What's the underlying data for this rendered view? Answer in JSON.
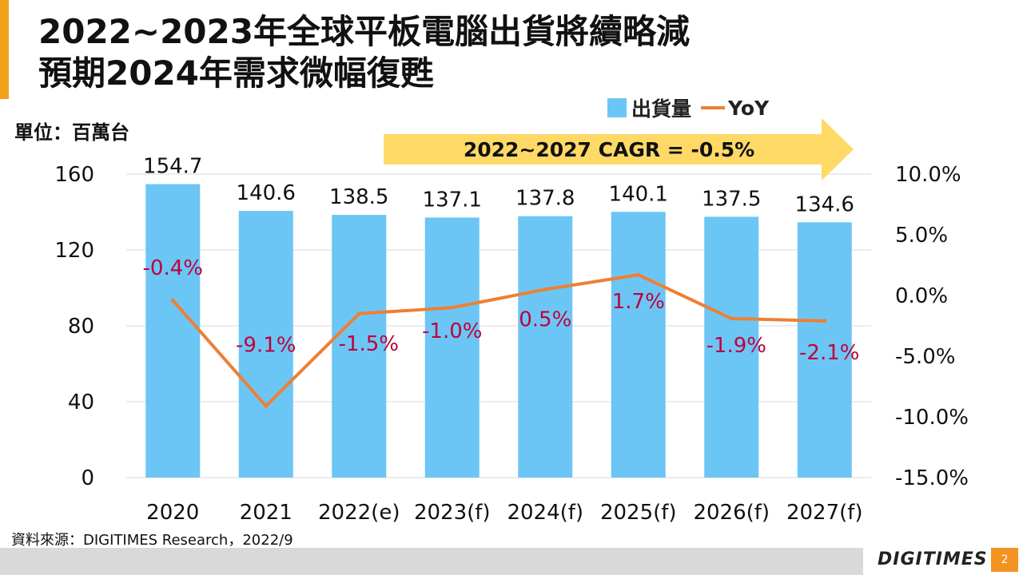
{
  "header": {
    "title_line1": "2022~2023年全球平板電腦出貨將續略減",
    "title_line2": "預期2024年需求微幅復甦"
  },
  "unit_label": "單位：百萬台",
  "source_note": "資料來源：DIGITIMES Research，2022/9",
  "brand": {
    "logo_text": "DIGITIMES",
    "page_number": "2"
  },
  "colors": {
    "bar": "#6cc6f5",
    "line": "#ed8034",
    "yoy_label": "#c0003a",
    "arrow": "#ffd966",
    "accent": "#f4a21d",
    "footer": "#d9d9d9",
    "page_badge": "#f39322",
    "grid": "#d9d9d9"
  },
  "chart_data": {
    "type": "bar",
    "categories": [
      "2020",
      "2021",
      "2022(e)",
      "2023(f)",
      "2024(f)",
      "2025(f)",
      "2026(f)",
      "2027(f)"
    ],
    "series": [
      {
        "name": "出貨量",
        "type": "bar",
        "axis": "left",
        "values": [
          154.7,
          140.6,
          138.5,
          137.1,
          137.8,
          140.1,
          137.5,
          134.6
        ],
        "labels": [
          "154.7",
          "140.6",
          "138.5",
          "137.1",
          "137.8",
          "140.1",
          "137.5",
          "134.6"
        ]
      },
      {
        "name": "YoY",
        "type": "line",
        "axis": "right",
        "values": [
          -0.4,
          -9.1,
          -1.5,
          -1.0,
          0.5,
          1.7,
          -1.9,
          -2.1
        ],
        "labels": [
          "-0.4%",
          "-9.1%",
          "-1.5%",
          "-1.0%",
          "0.5%",
          "1.7%",
          "-1.9%",
          "-2.1%"
        ]
      }
    ],
    "y_left": {
      "min": 0,
      "max": 160,
      "ticks": [
        0,
        40,
        80,
        120,
        160
      ]
    },
    "y_right": {
      "min": -15,
      "max": 10,
      "ticks": [
        10,
        5,
        0,
        -5,
        -10,
        -15
      ],
      "tick_labels": [
        "10.0%",
        "5.0%",
        "0.0%",
        "-5.0%",
        "-10.0%",
        "-15.0%"
      ]
    },
    "legend": {
      "position": "top-right",
      "entries": [
        "出貨量",
        "YoY"
      ]
    },
    "annotation": {
      "text": "2022~2027 CAGR = -0.5%",
      "shape": "right-arrow"
    },
    "grid": true
  }
}
